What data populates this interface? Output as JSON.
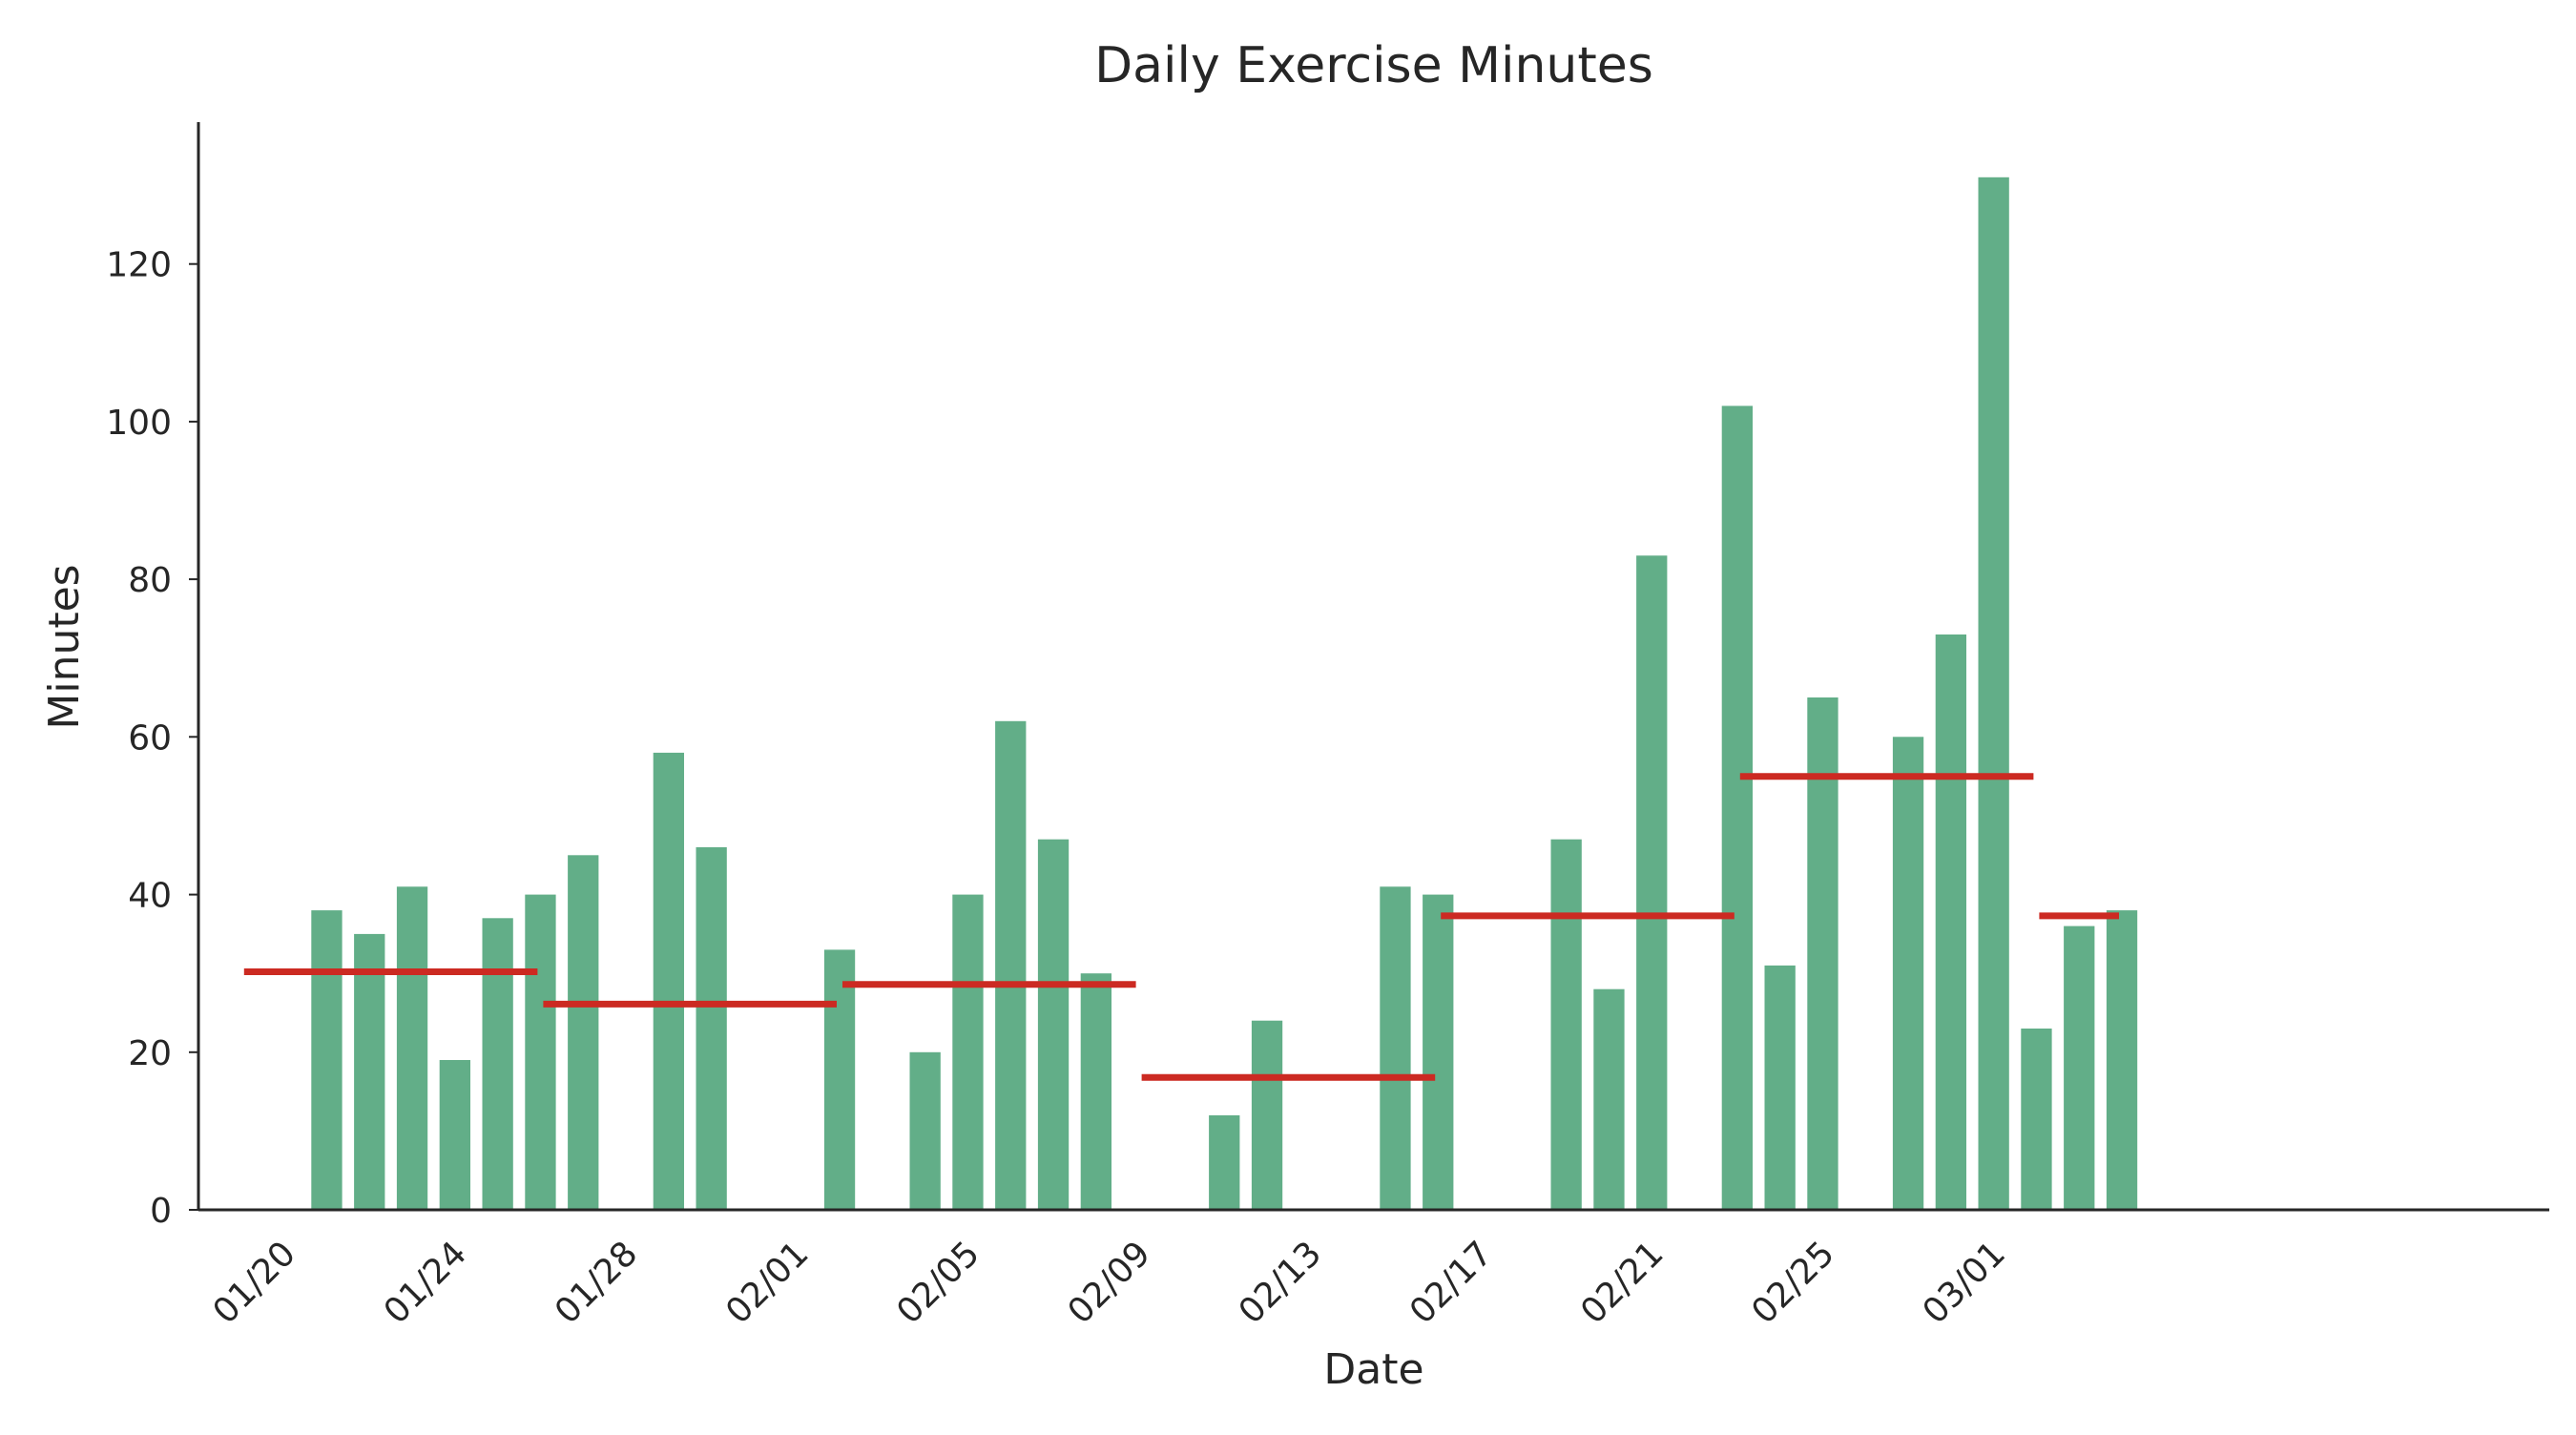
{
  "chart_data": {
    "type": "bar",
    "title": "Daily Exercise Minutes",
    "xlabel": "Date",
    "ylabel": "Minutes",
    "ylim": [
      0,
      138
    ],
    "yticks": [
      0,
      20,
      40,
      60,
      80,
      100,
      120
    ],
    "x_range": [
      "2025-01-18",
      "2025-03-14"
    ],
    "xticks": [
      {
        "date": "2025-01-20",
        "label": "01/20"
      },
      {
        "date": "2025-01-24",
        "label": "01/24"
      },
      {
        "date": "2025-01-28",
        "label": "01/28"
      },
      {
        "date": "2025-02-01",
        "label": "02/01"
      },
      {
        "date": "2025-02-05",
        "label": "02/05"
      },
      {
        "date": "2025-02-09",
        "label": "02/09"
      },
      {
        "date": "2025-02-13",
        "label": "02/13"
      },
      {
        "date": "2025-02-17",
        "label": "02/17"
      },
      {
        "date": "2025-02-21",
        "label": "02/21"
      },
      {
        "date": "2025-02-25",
        "label": "02/25"
      },
      {
        "date": "2025-03-01",
        "label": "03/01"
      }
    ],
    "grid": false,
    "legend": "none",
    "bar_color": "#62ae88",
    "line_color": "#cc2a22",
    "series": [
      {
        "type": "bar",
        "points": [
          {
            "date": "2025-01-21",
            "value": 38
          },
          {
            "date": "2025-01-22",
            "value": 35
          },
          {
            "date": "2025-01-23",
            "value": 41
          },
          {
            "date": "2025-01-24",
            "value": 19
          },
          {
            "date": "2025-01-25",
            "value": 37
          },
          {
            "date": "2025-01-26",
            "value": 40
          },
          {
            "date": "2025-01-27",
            "value": 45
          },
          {
            "date": "2025-01-29",
            "value": 58
          },
          {
            "date": "2025-01-30",
            "value": 46
          },
          {
            "date": "2025-02-02",
            "value": 33
          },
          {
            "date": "2025-02-04",
            "value": 20
          },
          {
            "date": "2025-02-05",
            "value": 40
          },
          {
            "date": "2025-02-06",
            "value": 62
          },
          {
            "date": "2025-02-07",
            "value": 47
          },
          {
            "date": "2025-02-08",
            "value": 30
          },
          {
            "date": "2025-02-11",
            "value": 12
          },
          {
            "date": "2025-02-12",
            "value": 24
          },
          {
            "date": "2025-02-15",
            "value": 41
          },
          {
            "date": "2025-02-16",
            "value": 40
          },
          {
            "date": "2025-02-19",
            "value": 47
          },
          {
            "date": "2025-02-20",
            "value": 28
          },
          {
            "date": "2025-02-21",
            "value": 83
          },
          {
            "date": "2025-02-23",
            "value": 102
          },
          {
            "date": "2025-02-24",
            "value": 31
          },
          {
            "date": "2025-02-25",
            "value": 65
          },
          {
            "date": "2025-02-27",
            "value": 60
          },
          {
            "date": "2025-02-28",
            "value": 73
          },
          {
            "date": "2025-03-01",
            "value": 131
          },
          {
            "date": "2025-03-02",
            "value": 23
          },
          {
            "date": "2025-03-03",
            "value": 36
          },
          {
            "date": "2025-03-04",
            "value": 38
          }
        ]
      },
      {
        "type": "step",
        "segments": [
          {
            "start": "2025-01-19",
            "end": "2025-01-26",
            "value": 30.2
          },
          {
            "start": "2025-01-26",
            "end": "2025-02-02",
            "value": 26.1
          },
          {
            "start": "2025-02-02",
            "end": "2025-02-09",
            "value": 28.6
          },
          {
            "start": "2025-02-09",
            "end": "2025-02-16",
            "value": 16.8
          },
          {
            "start": "2025-02-16",
            "end": "2025-02-23",
            "value": 37.3
          },
          {
            "start": "2025-02-23",
            "end": "2025-03-02",
            "value": 55
          },
          {
            "start": "2025-03-02",
            "end": "2025-03-04",
            "value": 37.3
          }
        ]
      }
    ]
  }
}
